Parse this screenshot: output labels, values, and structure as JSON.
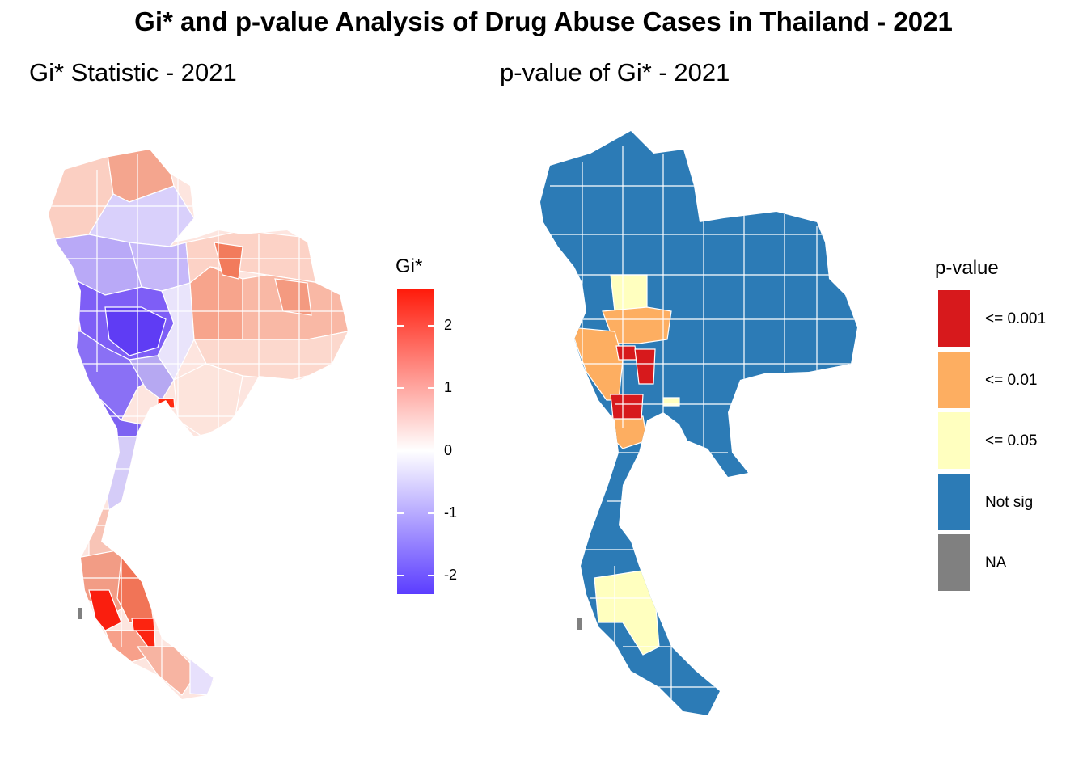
{
  "title": "Gi* and p-value Analysis of Drug Abuse Cases in Thailand - 2021",
  "panels": {
    "gi": {
      "title": "Gi* Statistic - 2021",
      "legend": {
        "title": "Gi*",
        "ticks": [
          "2",
          "1",
          "0",
          "-1",
          "-2"
        ],
        "tick_values": [
          2,
          1,
          0,
          -1,
          -2
        ],
        "range": [
          -2.3,
          2.6
        ],
        "colors": {
          "low": "#5B3DFF",
          "mid": "#FFFFFF",
          "high": "#FF1A0A"
        }
      }
    },
    "p": {
      "title": "p-value of Gi* - 2021",
      "legend": {
        "title": "p-value",
        "items": [
          {
            "label": "<= 0.001",
            "color": "#D7191C"
          },
          {
            "label": "<= 0.01",
            "color": "#FDAE61"
          },
          {
            "label": "<= 0.05",
            "color": "#FFFFBF"
          },
          {
            "label": "Not sig",
            "color": "#2C7BB6"
          },
          {
            "label": "NA",
            "color": "#808080"
          }
        ]
      }
    }
  }
}
